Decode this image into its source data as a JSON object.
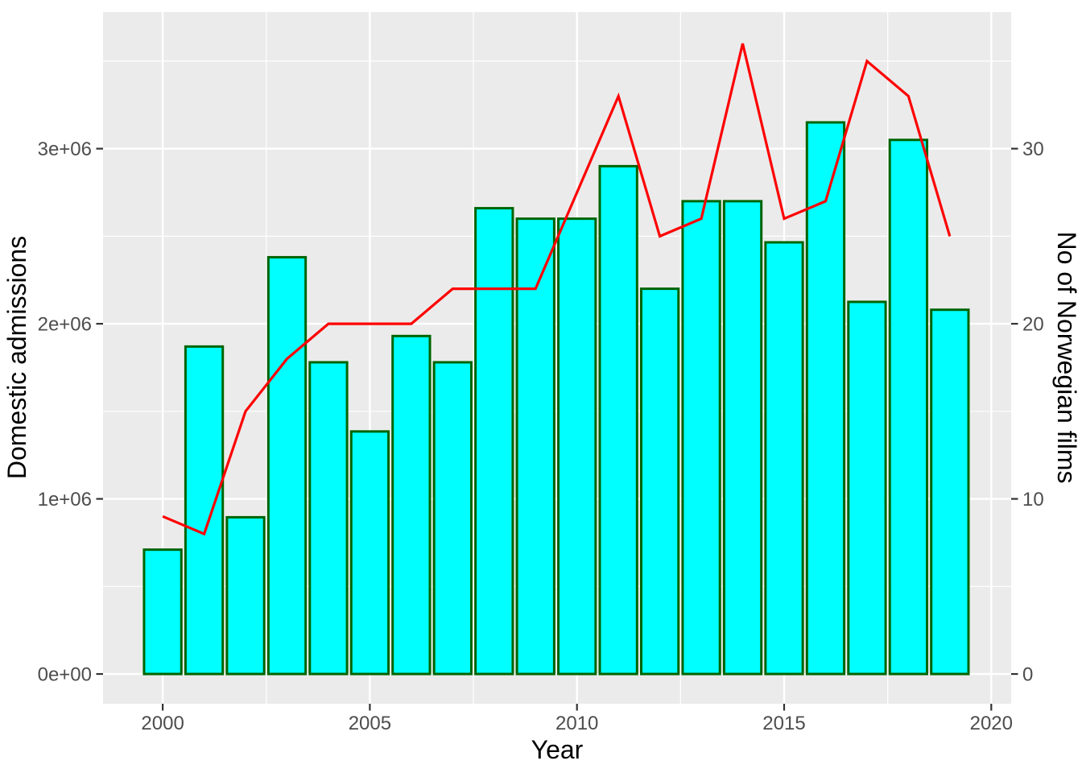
{
  "chart_data": {
    "type": "bar",
    "overlay_type": "line",
    "xlabel": "Year",
    "ylabel_left": "Domestic admissions",
    "ylabel_right": "No of Norwegian films",
    "years": [
      2000,
      2001,
      2002,
      2003,
      2004,
      2005,
      2006,
      2007,
      2008,
      2009,
      2010,
      2011,
      2012,
      2013,
      2014,
      2015,
      2016,
      2017,
      2018,
      2019
    ],
    "series": [
      {
        "name": "Domestic admissions",
        "type": "bar",
        "yaxis": "left",
        "values": [
          710000,
          1870000,
          895000,
          2380000,
          1780000,
          1385000,
          1930000,
          1780000,
          2660000,
          2600000,
          2600000,
          2900000,
          2200000,
          2700000,
          2700000,
          2465000,
          3150000,
          2125000,
          3050000,
          2080000
        ]
      },
      {
        "name": "No of Norwegian films",
        "type": "line",
        "yaxis": "right",
        "values": [
          9,
          8,
          15,
          18,
          20,
          20,
          20,
          22,
          22,
          22,
          27.5,
          33,
          25,
          26,
          36,
          26,
          27,
          35,
          33,
          25
        ]
      }
    ],
    "x_ticks": {
      "values": [
        2000,
        2005,
        2010,
        2015,
        2020
      ],
      "labels": [
        "2000",
        "2005",
        "2010",
        "2015",
        "2020"
      ]
    },
    "y_ticks_left": {
      "values": [
        0,
        1000000,
        2000000,
        3000000
      ],
      "labels": [
        "0e+00",
        "1e+06",
        "2e+06",
        "3e+06"
      ]
    },
    "y_ticks_right": {
      "values": [
        0,
        10,
        20,
        30
      ],
      "labels": [
        "0",
        "10",
        "20",
        "30"
      ]
    },
    "x_minor": [
      2002.5,
      2007.5,
      2012.5,
      2017.5
    ],
    "y_minor_left": [
      500000,
      1500000,
      2500000,
      3500000
    ],
    "x_range": [
      1998.56,
      2020.48
    ],
    "y_range_left": [
      -170000,
      3780000
    ],
    "y_range_right": [
      -1.7,
      37.8
    ],
    "bar_width_years": 0.9,
    "legend": "none",
    "grid": "major+minor",
    "colors": {
      "figure_background": "#FFFFFF",
      "panel_background": "#EBEBEB",
      "grid": "#FFFFFF",
      "bar_fill": "#00FFFF",
      "bar_border": "#006400",
      "line": "#FF0000",
      "tick_text": "#4D4D4D",
      "tick_mark": "#333333",
      "axis_title": "#000000"
    }
  }
}
